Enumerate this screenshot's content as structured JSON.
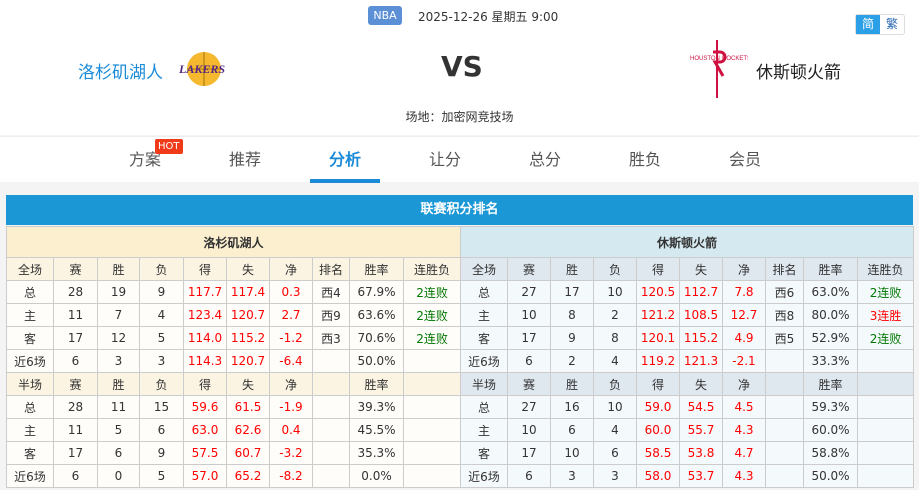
{
  "match": {
    "league": "NBA",
    "datetime": "2025-12-26 星期五 9:00",
    "home": "洛杉矶湖人",
    "away": "休斯顿火箭",
    "vs": "VS",
    "venue": "场地：加密网竞技场",
    "home_logo": "LAKERS",
    "away_logo": "HOUSTON ROCKETS"
  },
  "lang": {
    "simplified": "简",
    "traditional": "繁"
  },
  "tabs": [
    {
      "label": "方案",
      "badge": "HOT"
    },
    {
      "label": "推荐"
    },
    {
      "label": "分析",
      "active": true
    },
    {
      "label": "让分"
    },
    {
      "label": "总分"
    },
    {
      "label": "胜负"
    },
    {
      "label": "会员"
    }
  ],
  "section_title": "联赛积分排名",
  "colors": {
    "accent": "#1b97d6",
    "positive": "#ff0000",
    "loss_streak": "#007700"
  },
  "full_header": [
    "全场",
    "赛",
    "胜",
    "负",
    "得",
    "失",
    "净",
    "排名",
    "胜率",
    "连胜负"
  ],
  "half_header": [
    "半场",
    "赛",
    "胜",
    "负",
    "得",
    "失",
    "净",
    "",
    "胜率",
    ""
  ],
  "home_table": {
    "full": [
      [
        "总",
        "28",
        "19",
        "9",
        "117.7",
        "117.4",
        "0.3",
        "西4",
        "67.9%",
        "2连败"
      ],
      [
        "主",
        "11",
        "7",
        "4",
        "123.4",
        "120.7",
        "2.7",
        "西9",
        "63.6%",
        "2连败"
      ],
      [
        "客",
        "17",
        "12",
        "5",
        "114.0",
        "115.2",
        "-1.2",
        "西3",
        "70.6%",
        "2连败"
      ],
      [
        "近6场",
        "6",
        "3",
        "3",
        "114.3",
        "120.7",
        "-6.4",
        "",
        "50.0%",
        ""
      ]
    ],
    "half": [
      [
        "总",
        "28",
        "11",
        "15",
        "59.6",
        "61.5",
        "-1.9",
        "",
        "39.3%",
        ""
      ],
      [
        "主",
        "11",
        "5",
        "6",
        "63.0",
        "62.6",
        "0.4",
        "",
        "45.5%",
        ""
      ],
      [
        "客",
        "17",
        "6",
        "9",
        "57.5",
        "60.7",
        "-3.2",
        "",
        "35.3%",
        ""
      ],
      [
        "近6场",
        "6",
        "0",
        "5",
        "57.0",
        "65.2",
        "-8.2",
        "",
        "0.0%",
        ""
      ]
    ]
  },
  "away_table": {
    "full": [
      [
        "总",
        "27",
        "17",
        "10",
        "120.5",
        "112.7",
        "7.8",
        "西6",
        "63.0%",
        "2连败"
      ],
      [
        "主",
        "10",
        "8",
        "2",
        "121.2",
        "108.5",
        "12.7",
        "西8",
        "80.0%",
        "3连胜"
      ],
      [
        "客",
        "17",
        "9",
        "8",
        "120.1",
        "115.2",
        "4.9",
        "西5",
        "52.9%",
        "2连败"
      ],
      [
        "近6场",
        "6",
        "2",
        "4",
        "119.2",
        "121.3",
        "-2.1",
        "",
        "33.3%",
        ""
      ]
    ],
    "half": [
      [
        "总",
        "27",
        "16",
        "10",
        "59.0",
        "54.5",
        "4.5",
        "",
        "59.3%",
        ""
      ],
      [
        "主",
        "10",
        "6",
        "4",
        "60.0",
        "55.7",
        "4.3",
        "",
        "60.0%",
        ""
      ],
      [
        "客",
        "17",
        "10",
        "6",
        "58.5",
        "53.8",
        "4.7",
        "",
        "58.8%",
        ""
      ],
      [
        "近6场",
        "6",
        "3",
        "3",
        "58.0",
        "53.7",
        "4.3",
        "",
        "50.0%",
        ""
      ]
    ]
  }
}
